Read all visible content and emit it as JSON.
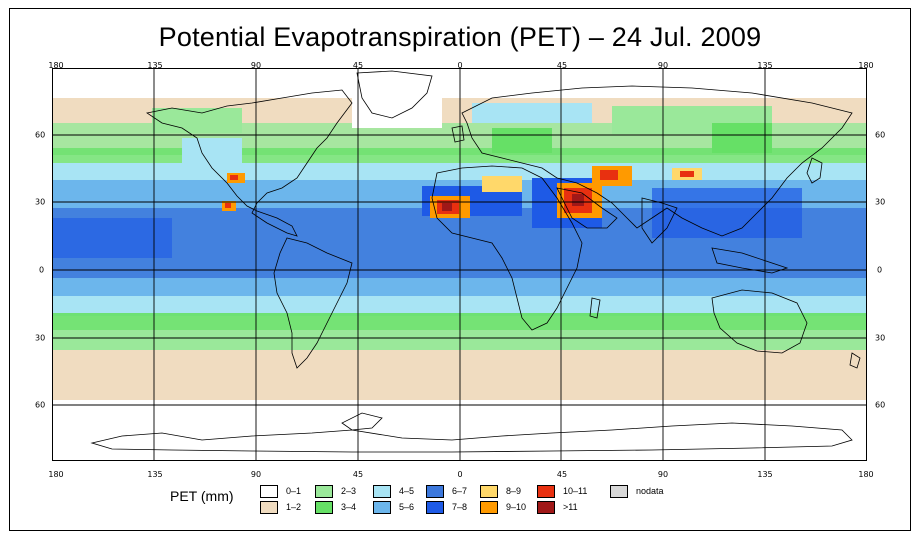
{
  "title": "Potential Evapotranspiration (PET) – 24 Jul. 2009",
  "x_ticks": [
    "180",
    "135",
    "90",
    "45",
    "0",
    "45",
    "90",
    "135",
    "180"
  ],
  "y_ticks_left": [
    "60",
    "30",
    "0",
    "30",
    "60"
  ],
  "y_ticks_right": [
    "60",
    "30",
    "0",
    "30",
    "60"
  ],
  "legend": {
    "title": "PET (mm)",
    "items": [
      {
        "label": "0–1",
        "color": "#ffffff"
      },
      {
        "label": "1–2",
        "color": "#f0dcc0"
      },
      {
        "label": "2–3",
        "color": "#9ae89a"
      },
      {
        "label": "3–4",
        "color": "#66e066"
      },
      {
        "label": "4–5",
        "color": "#a8e4f4"
      },
      {
        "label": "5–6",
        "color": "#6cb6ec"
      },
      {
        "label": "6–7",
        "color": "#3c78dc"
      },
      {
        "label": "7–8",
        "color": "#1e5ae6"
      },
      {
        "label": "8–9",
        "color": "#ffd86a"
      },
      {
        "label": "9–10",
        "color": "#ff9a00"
      },
      {
        "label": "10–11",
        "color": "#e83010"
      },
      {
        "label": ">11",
        "color": "#a01818"
      },
      {
        "label": "nodata",
        "color": "#d8d8d8"
      }
    ]
  },
  "map_data": {
    "projection": "equirectangular",
    "lon_range": [
      -180,
      180
    ],
    "lat_range": [
      -90,
      90
    ],
    "grid_lon_step": 45,
    "grid_lat_step": 30
  }
}
